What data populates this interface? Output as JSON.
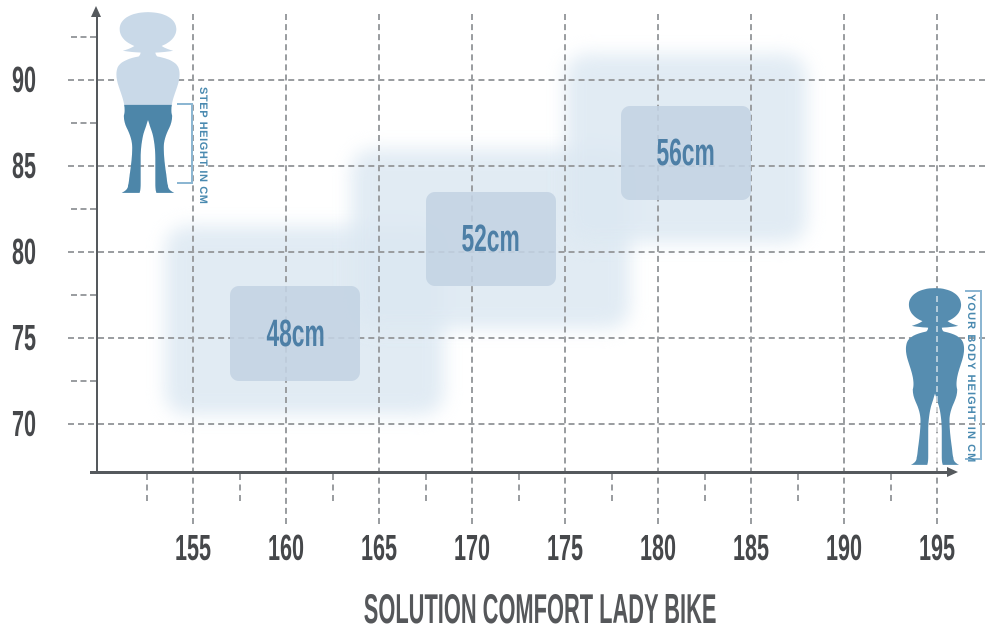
{
  "title": "SOLUTION COMFORT LADY BIKE",
  "left_figure": {
    "label": "STEP HEIGHT IN CM"
  },
  "right_figure": {
    "label": "YOUR BODY HEIGHT IN CM"
  },
  "colors": {
    "grid": "#9b9ea1",
    "axis": "#55595d",
    "tick_label": "#46484b",
    "title_color": "#55575a",
    "accent_teal": "#4a8ab0",
    "bracket": "#8cb6d2",
    "zone_fill": "#dce8f2",
    "zone_core_fill": "#c3d3e3",
    "zone_label": "#4d7fa6",
    "figure_light": "#c9d9e8",
    "figure_dark": "#4d86a9",
    "figure_right": "#568db0"
  },
  "chart_data": {
    "type": "heatmap",
    "title": "SOLUTION COMFORT LADY BIKE",
    "xlabel": "YOUR BODY HEIGHT IN CM",
    "ylabel": "STEP HEIGHT IN CM",
    "x_ticks": [
      155,
      160,
      165,
      170,
      175,
      180,
      185,
      190,
      195
    ],
    "x_minor_ticks": [
      152.5,
      157.5,
      162.5,
      167.5,
      172.5,
      177.5,
      182.5,
      187.5,
      192.5
    ],
    "y_ticks": [
      70,
      75,
      80,
      85,
      90
    ],
    "y_minor_ticks": [
      72.5,
      77.5,
      82.5,
      87.5,
      92.5
    ],
    "xlim": [
      150,
      197
    ],
    "ylim": [
      67,
      93
    ],
    "grid": "dashed",
    "zones": [
      {
        "label": "48cm",
        "frame_size_cm": 48,
        "body_height_cm": [
          157,
          164
        ],
        "step_height_cm": [
          72.5,
          78
        ],
        "body_height_outer_cm": [
          153.5,
          168.5
        ],
        "step_height_outer_cm": [
          70.5,
          81.5
        ]
      },
      {
        "label": "52cm",
        "frame_size_cm": 52,
        "body_height_cm": [
          167.5,
          174.5
        ],
        "step_height_cm": [
          78,
          83.5
        ],
        "body_height_outer_cm": [
          163.5,
          178.5
        ],
        "step_height_outer_cm": [
          75.5,
          86
        ]
      },
      {
        "label": "56cm",
        "frame_size_cm": 56,
        "body_height_cm": [
          178,
          185
        ],
        "step_height_cm": [
          83,
          88.5
        ],
        "body_height_outer_cm": [
          175,
          188
        ],
        "step_height_outer_cm": [
          80.5,
          91.5
        ]
      }
    ]
  }
}
